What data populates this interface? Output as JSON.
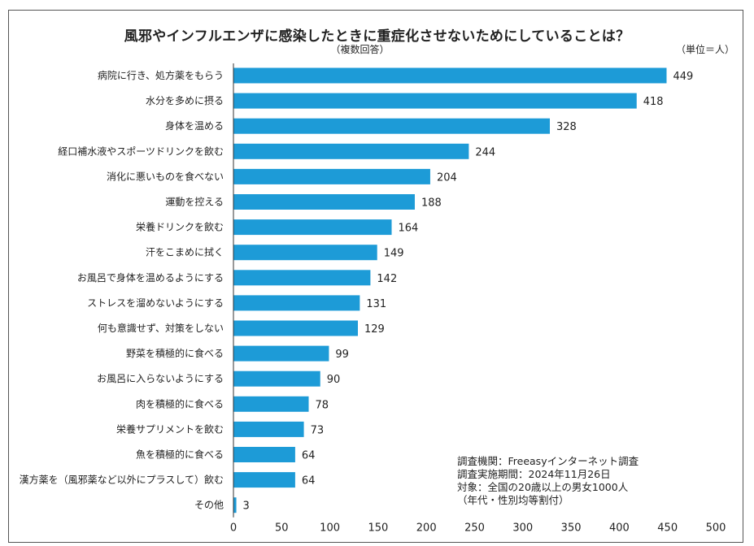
{
  "title": "風邪やインフルエンザに感染したときに重症化させないためにしていることは？",
  "subtitle": "（複数回答）",
  "unit_label": "（単位＝人）",
  "note_lines": [
    "調査機関：Freeasyインターネット調査",
    "調査実施期間：2024年11月26日",
    "対象：全国の20歳以上の男女1000人",
    "（年代・性別均等割付）"
  ],
  "colors": {
    "bar": "#1d9bd7",
    "frame": "#555555",
    "axis": "#333333"
  },
  "chart_data": {
    "type": "bar",
    "orientation": "horizontal",
    "categories": [
      "病院に行き、処方薬をもらう",
      "水分を多めに摂る",
      "身体を温める",
      "経口補水液やスポーツドリンクを飲む",
      "消化に悪いものを食べない",
      "運動を控える",
      "栄養ドリンクを飲む",
      "汗をこまめに拭く",
      "お風呂で身体を温めるようにする",
      "ストレスを溜めないようにする",
      "何も意識せず、対策をしない",
      "野菜を積極的に食べる",
      "お風呂に入らないようにする",
      "肉を積極的に食べる",
      "栄養サプリメントを飲む",
      "魚を積極的に食べる",
      "漢方薬を（風邪薬など以外にプラスして）飲む",
      "その他"
    ],
    "values": [
      449,
      418,
      328,
      244,
      204,
      188,
      164,
      149,
      142,
      131,
      129,
      99,
      90,
      78,
      73,
      64,
      64,
      3
    ],
    "xlim": [
      0,
      500
    ],
    "xticks": [
      0,
      50,
      100,
      150,
      200,
      250,
      300,
      350,
      400,
      450,
      500
    ],
    "grid": false,
    "legend": "none"
  }
}
